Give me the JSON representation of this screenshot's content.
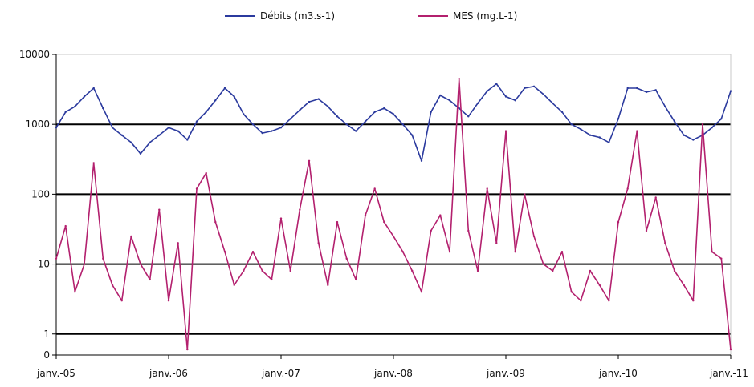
{
  "chart_data": {
    "type": "line",
    "title": "",
    "xlabel": "",
    "ylabel": "",
    "y_scale": "log",
    "ylim": [
      0.5,
      10000
    ],
    "y_ticks": [
      {
        "label": "10000",
        "value": 10000
      },
      {
        "label": "1000",
        "value": 1000
      },
      {
        "label": "100",
        "value": 100
      },
      {
        "label": "10",
        "value": 10
      },
      {
        "label": "1",
        "value": 1
      },
      {
        "label": "0",
        "value": 0.5
      }
    ],
    "x_ticks": [
      "janv.-05",
      "janv.-06",
      "janv.-07",
      "janv.-08",
      "janv.-09",
      "janv.-10",
      "janv.-11"
    ],
    "xlim": [
      "2005-01",
      "2011-01"
    ],
    "grid": "horizontal major lines",
    "legend_position": "top-center",
    "series": [
      {
        "name": "Débits (m3.s-1)",
        "color": "#2b3a9e",
        "x": [
          "2005-01",
          "2005-02",
          "2005-03",
          "2005-04",
          "2005-05",
          "2005-06",
          "2005-07",
          "2005-08",
          "2005-09",
          "2005-10",
          "2005-11",
          "2005-12",
          "2006-01",
          "2006-02",
          "2006-03",
          "2006-04",
          "2006-05",
          "2006-06",
          "2006-07",
          "2006-08",
          "2006-09",
          "2006-10",
          "2006-11",
          "2006-12",
          "2007-01",
          "2007-02",
          "2007-03",
          "2007-04",
          "2007-05",
          "2007-06",
          "2007-07",
          "2007-08",
          "2007-09",
          "2007-10",
          "2007-11",
          "2007-12",
          "2008-01",
          "2008-02",
          "2008-03",
          "2008-04",
          "2008-05",
          "2008-06",
          "2008-07",
          "2008-08",
          "2008-09",
          "2008-10",
          "2008-11",
          "2008-12",
          "2009-01",
          "2009-02",
          "2009-03",
          "2009-04",
          "2009-05",
          "2009-06",
          "2009-07",
          "2009-08",
          "2009-09",
          "2009-10",
          "2009-11",
          "2009-12",
          "2010-01",
          "2010-02",
          "2010-03",
          "2010-04",
          "2010-05",
          "2010-06",
          "2010-07",
          "2010-08",
          "2010-09",
          "2010-10",
          "2010-11",
          "2010-12",
          "2011-01"
        ],
        "values": [
          900,
          1500,
          1800,
          2500,
          3300,
          1700,
          900,
          700,
          550,
          380,
          550,
          700,
          900,
          800,
          600,
          1100,
          1500,
          2200,
          3300,
          2500,
          1400,
          1000,
          750,
          800,
          900,
          1200,
          1600,
          2100,
          2300,
          1800,
          1300,
          1000,
          800,
          1100,
          1500,
          1700,
          1400,
          1000,
          700,
          300,
          1500,
          2600,
          2200,
          1700,
          1300,
          2000,
          3000,
          3800,
          2500,
          2200,
          3300,
          3500,
          2700,
          2000,
          1500,
          1000,
          850,
          700,
          650,
          550,
          1200,
          3300,
          3300,
          2900,
          3100,
          1800,
          1100,
          700,
          600,
          700,
          900,
          1200,
          3000
        ]
      },
      {
        "name": "MES (mg.L-1)",
        "color": "#b3206e",
        "x": [
          "2005-01",
          "2005-02",
          "2005-03",
          "2005-04",
          "2005-05",
          "2005-06",
          "2005-07",
          "2005-08",
          "2005-09",
          "2005-10",
          "2005-11",
          "2005-12",
          "2006-01",
          "2006-02",
          "2006-03",
          "2006-04",
          "2006-05",
          "2006-06",
          "2006-07",
          "2006-08",
          "2006-09",
          "2006-10",
          "2006-11",
          "2006-12",
          "2007-01",
          "2007-02",
          "2007-03",
          "2007-04",
          "2007-05",
          "2007-06",
          "2007-07",
          "2007-08",
          "2007-09",
          "2007-10",
          "2007-11",
          "2007-12",
          "2008-01",
          "2008-02",
          "2008-03",
          "2008-04",
          "2008-05",
          "2008-06",
          "2008-07",
          "2008-08",
          "2008-09",
          "2008-10",
          "2008-11",
          "2008-12",
          "2009-01",
          "2009-02",
          "2009-03",
          "2009-04",
          "2009-05",
          "2009-06",
          "2009-07",
          "2009-08",
          "2009-09",
          "2009-10",
          "2009-11",
          "2009-12",
          "2010-01",
          "2010-02",
          "2010-03",
          "2010-04",
          "2010-05",
          "2010-06",
          "2010-07",
          "2010-08",
          "2010-09",
          "2010-10",
          "2010-11",
          "2010-12",
          "2011-01"
        ],
        "values": [
          12,
          35,
          4,
          10,
          280,
          12,
          5,
          3,
          25,
          10,
          6,
          60,
          3,
          20,
          0.6,
          120,
          200,
          40,
          15,
          5,
          8,
          15,
          8,
          6,
          45,
          8,
          60,
          300,
          20,
          5,
          40,
          12,
          6,
          50,
          120,
          40,
          25,
          15,
          8,
          4,
          30,
          50,
          15,
          4500,
          30,
          8,
          120,
          20,
          800,
          15,
          100,
          25,
          10,
          8,
          15,
          4,
          3,
          8,
          5,
          3,
          40,
          120,
          800,
          30,
          90,
          20,
          8,
          5,
          3,
          1000,
          15,
          12,
          0.6
        ]
      }
    ]
  }
}
